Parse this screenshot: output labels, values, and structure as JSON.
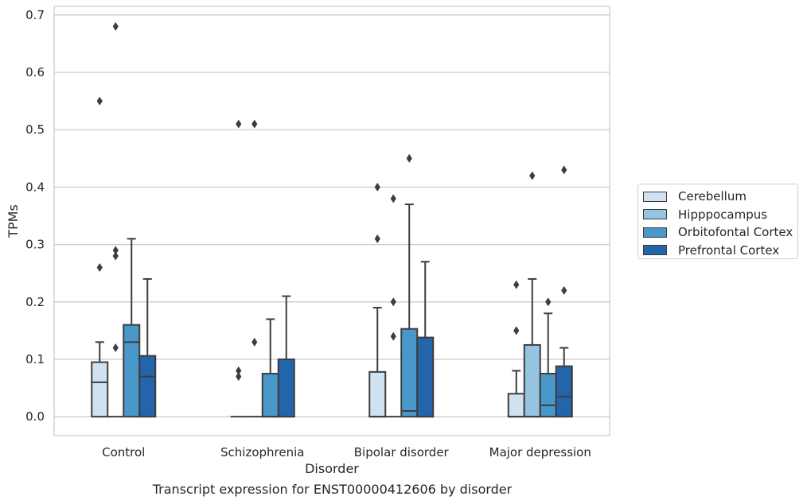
{
  "chart_data": {
    "type": "boxplot",
    "title": "Transcript expression for ENST00000412606 by disorder",
    "xlabel": "Disorder",
    "ylabel": "TPMs",
    "ylim": [
      -0.033,
      0.715
    ],
    "yticks": [
      "0.0",
      "0.1",
      "0.2",
      "0.3",
      "0.4",
      "0.5",
      "0.6",
      "0.7"
    ],
    "categories": [
      "Control",
      "Schizophrenia",
      "Bipolar disorder",
      "Major depression"
    ],
    "grid": true,
    "legend_position": "right",
    "series": [
      {
        "name": "Cerebellum",
        "color": "#d0e1f2",
        "boxes": [
          {
            "q1": 0.0,
            "median": 0.06,
            "q3": 0.095,
            "whisker_low": 0.0,
            "whisker_high": 0.13,
            "outliers": [
              0.26,
              0.55
            ]
          },
          {
            "q1": 0.0,
            "median": 0.0,
            "q3": 0.0,
            "whisker_low": 0.0,
            "whisker_high": 0.0,
            "outliers": [
              0.07,
              0.08,
              0.51
            ]
          },
          {
            "q1": 0.0,
            "median": 0.0,
            "q3": 0.078,
            "whisker_low": 0.0,
            "whisker_high": 0.19,
            "outliers": [
              0.31,
              0.4
            ]
          },
          {
            "q1": 0.0,
            "median": 0.0,
            "q3": 0.04,
            "whisker_low": 0.0,
            "whisker_high": 0.08,
            "outliers": [
              0.15,
              0.23
            ]
          }
        ]
      },
      {
        "name": "Hipppocampus",
        "color": "#94c4df",
        "boxes": [
          {
            "q1": 0.0,
            "median": 0.0,
            "q3": 0.0,
            "whisker_low": 0.0,
            "whisker_high": 0.0,
            "outliers": [
              0.12,
              0.28,
              0.29,
              0.68
            ]
          },
          {
            "q1": 0.0,
            "median": 0.0,
            "q3": 0.0,
            "whisker_low": 0.0,
            "whisker_high": 0.0,
            "outliers": [
              0.13,
              0.51
            ]
          },
          {
            "q1": 0.0,
            "median": 0.0,
            "q3": 0.0,
            "whisker_low": 0.0,
            "whisker_high": 0.0,
            "outliers": [
              0.14,
              0.2,
              0.38
            ]
          },
          {
            "q1": 0.0,
            "median": 0.0,
            "q3": 0.125,
            "whisker_low": 0.0,
            "whisker_high": 0.24,
            "outliers": [
              0.42
            ]
          }
        ]
      },
      {
        "name": "Orbitofontal Cortex",
        "color": "#4a98c9",
        "boxes": [
          {
            "q1": 0.0,
            "median": 0.13,
            "q3": 0.16,
            "whisker_low": 0.0,
            "whisker_high": 0.31,
            "outliers": []
          },
          {
            "q1": 0.0,
            "median": 0.0,
            "q3": 0.075,
            "whisker_low": 0.0,
            "whisker_high": 0.17,
            "outliers": []
          },
          {
            "q1": 0.0,
            "median": 0.01,
            "q3": 0.153,
            "whisker_low": 0.0,
            "whisker_high": 0.37,
            "outliers": [
              0.45
            ]
          },
          {
            "q1": 0.0,
            "median": 0.02,
            "q3": 0.075,
            "whisker_low": 0.0,
            "whisker_high": 0.18,
            "outliers": [
              0.2
            ]
          }
        ]
      },
      {
        "name": "Prefrontal Cortex",
        "color": "#2265ab",
        "boxes": [
          {
            "q1": 0.0,
            "median": 0.07,
            "q3": 0.106,
            "whisker_low": 0.0,
            "whisker_high": 0.24,
            "outliers": []
          },
          {
            "q1": 0.0,
            "median": 0.0,
            "q3": 0.1,
            "whisker_low": 0.0,
            "whisker_high": 0.21,
            "outliers": []
          },
          {
            "q1": 0.0,
            "median": 0.0,
            "q3": 0.138,
            "whisker_low": 0.0,
            "whisker_high": 0.27,
            "outliers": []
          },
          {
            "q1": 0.0,
            "median": 0.035,
            "q3": 0.088,
            "whisker_low": 0.0,
            "whisker_high": 0.12,
            "outliers": [
              0.22,
              0.43
            ]
          }
        ]
      }
    ]
  }
}
